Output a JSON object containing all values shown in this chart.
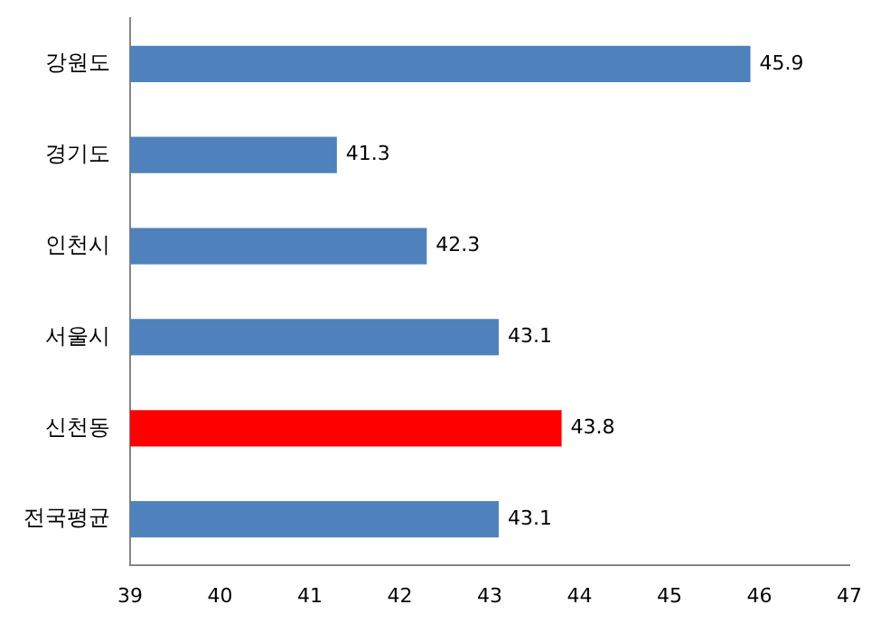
{
  "chart_data": {
    "type": "bar",
    "orientation": "horizontal",
    "categories": [
      "강원도",
      "경기도",
      "인천시",
      "서울시",
      "신천동",
      "전국평균"
    ],
    "values": [
      45.9,
      41.3,
      42.3,
      43.1,
      43.8,
      43.1
    ],
    "colors": [
      "#4f81bd",
      "#4f81bd",
      "#4f81bd",
      "#4f81bd",
      "#ff0000",
      "#4f81bd"
    ],
    "xlim": [
      39,
      47
    ],
    "xticks": [
      39,
      40,
      41,
      42,
      43,
      44,
      45,
      46,
      47
    ],
    "grid": false,
    "legend": false,
    "data_labels": true
  }
}
